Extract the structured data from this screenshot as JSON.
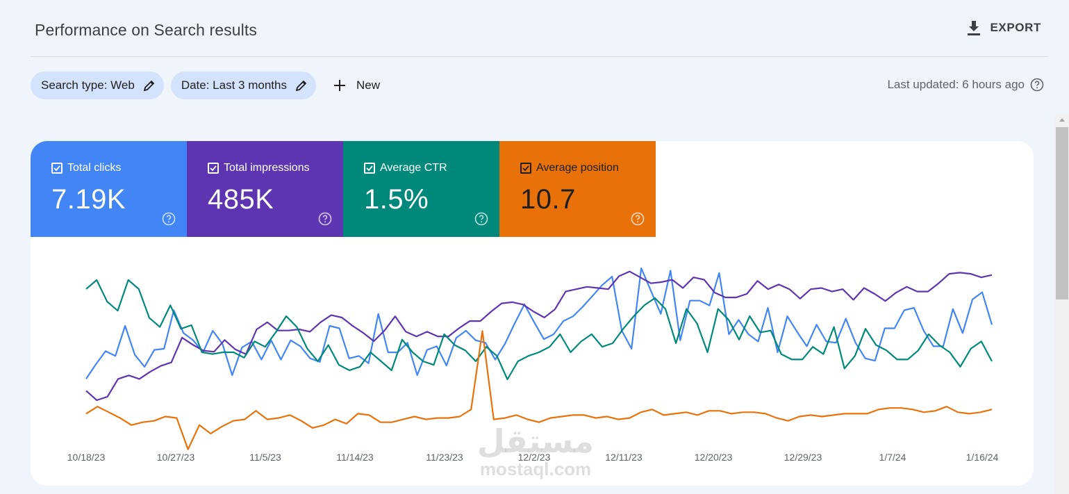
{
  "header": {
    "title": "Performance on Search results",
    "export_label": "EXPORT"
  },
  "filters": {
    "search_type": "Search type: Web",
    "date": "Date: Last 3 months",
    "new_label": "New"
  },
  "last_updated": "Last updated: 6 hours ago",
  "metrics": [
    {
      "label": "Total clicks",
      "value": "7.19K",
      "color": "#4285f4"
    },
    {
      "label": "Total impressions",
      "value": "485K",
      "color": "#5e35b1"
    },
    {
      "label": "Average CTR",
      "value": "1.5%",
      "color": "#00897b"
    },
    {
      "label": "Average position",
      "value": "10.7",
      "color": "#e8710a"
    }
  ],
  "chart_data": {
    "type": "line",
    "x_tick_labels": [
      "10/18/23",
      "10/27/23",
      "11/5/23",
      "11/14/23",
      "11/23/23",
      "12/2/23",
      "12/11/23",
      "12/20/23",
      "12/29/23",
      "1/7/24",
      "1/16/24"
    ],
    "series": [
      {
        "name": "Total clicks",
        "color": "#4285f4",
        "values": [
          0.08,
          0.2,
          0.31,
          0.27,
          0.52,
          0.28,
          0.18,
          0.32,
          0.33,
          0.65,
          0.46,
          0.4,
          0.3,
          0.48,
          0.37,
          0.11,
          0.34,
          0.39,
          0.24,
          0.4,
          0.24,
          0.4,
          0.35,
          0.25,
          0.22,
          0.52,
          0.5,
          0.25,
          0.27,
          0.21,
          0.62,
          0.3,
          0.3,
          0.38,
          0.11,
          0.32,
          0.35,
          0.19,
          0.42,
          0.48,
          0.4,
          0.38,
          0.24,
          0.37,
          0.54,
          0.7,
          0.55,
          0.41,
          0.45,
          0.56,
          0.6,
          0.68,
          0.77,
          0.86,
          0.93,
          0.48,
          0.33,
          1.0,
          0.81,
          0.62,
          0.98,
          0.4,
          0.73,
          0.73,
          0.69,
          0.96,
          0.45,
          0.57,
          0.45,
          0.39,
          0.67,
          0.3,
          0.6,
          0.47,
          0.35,
          0.53,
          0.39,
          0.38,
          0.58,
          0.38,
          0.25,
          0.23,
          0.5,
          0.5,
          0.65,
          0.67,
          0.48,
          0.35,
          0.35,
          0.66,
          0.46,
          0.74,
          0.8,
          0.53
        ]
      },
      {
        "name": "Total impressions",
        "color": "#5e35b1",
        "values": [
          0.18,
          0.1,
          0.13,
          0.28,
          0.31,
          0.28,
          0.34,
          0.39,
          0.42,
          0.63,
          0.57,
          0.52,
          0.51,
          0.61,
          0.53,
          0.49,
          0.7,
          0.76,
          0.69,
          0.69,
          0.7,
          0.68,
          0.76,
          0.82,
          0.8,
          0.73,
          0.67,
          0.6,
          0.69,
          0.81,
          0.68,
          0.64,
          0.68,
          0.64,
          0.64,
          0.71,
          0.77,
          0.77,
          0.85,
          0.92,
          0.93,
          0.91,
          0.85,
          0.8,
          0.87,
          1.02,
          1.04,
          1.06,
          1.05,
          1.04,
          1.15,
          1.19,
          1.14,
          1.09,
          1.1,
          1.12,
          1.05,
          1.14,
          1.12,
          1.01,
          0.97,
          0.97,
          1.0,
          1.11,
          1.04,
          1.08,
          1.04,
          0.96,
          1.04,
          1.05,
          1.02,
          1.04,
          0.95,
          1.05,
          1.0,
          0.94,
          1.01,
          1.06,
          1.02,
          1.02,
          1.09,
          1.17,
          1.18,
          1.17,
          1.14,
          1.16
        ]
      },
      {
        "name": "Average CTR",
        "color": "#00897b",
        "values": [
          0.95,
          1.0,
          0.88,
          0.83,
          1.0,
          0.95,
          0.79,
          0.74,
          0.86,
          0.73,
          0.75,
          0.6,
          0.59,
          0.6,
          0.6,
          0.57,
          0.66,
          0.63,
          0.71,
          0.8,
          0.74,
          0.62,
          0.55,
          0.64,
          0.53,
          0.5,
          0.52,
          0.6,
          0.55,
          0.5,
          0.67,
          0.6,
          0.55,
          0.53,
          0.7,
          0.64,
          0.61,
          0.55,
          0.63,
          0.58,
          0.45,
          0.55,
          0.58,
          0.6,
          0.63,
          0.7,
          0.6,
          0.66,
          0.7,
          0.63,
          0.65,
          0.73,
          0.8,
          0.86,
          0.9,
          0.84,
          0.65,
          0.84,
          0.76,
          0.6,
          0.84,
          0.78,
          0.67,
          0.8,
          0.71,
          0.72,
          0.59,
          0.56,
          0.56,
          0.63,
          0.59,
          0.74,
          0.51,
          0.58,
          0.73,
          0.64,
          0.61,
          0.56,
          0.56,
          0.61,
          0.7,
          0.64,
          0.6,
          0.52,
          0.62,
          0.66,
          0.55
        ]
      },
      {
        "name": "Average position",
        "color": "#e8710a",
        "values": [
          13.2,
          13.7,
          13.3,
          12.9,
          12.4,
          12.6,
          12.7,
          13.0,
          12.9,
          10.7,
          12.4,
          11.8,
          12.3,
          12.7,
          12.8,
          13.4,
          12.8,
          12.9,
          13.1,
          12.7,
          12.2,
          12.4,
          12.8,
          12.5,
          13.2,
          13.1,
          12.6,
          12.6,
          12.8,
          13.0,
          12.8,
          12.9,
          12.9,
          13.0,
          13.5,
          19.0,
          12.8,
          12.9,
          13.1,
          12.8,
          12.6,
          12.9,
          13.0,
          13.1,
          13.1,
          12.9,
          13.0,
          12.8,
          12.9,
          13.3,
          13.5,
          13.1,
          13.2,
          13.3,
          13.1,
          13.4,
          13.4,
          13.2,
          13.3,
          13.3,
          13.2,
          12.9,
          12.7,
          13.0,
          13.1,
          13.0,
          13.1,
          13.2,
          13.2,
          13.2,
          13.5,
          13.6,
          13.6,
          13.5,
          13.3,
          13.4,
          13.7,
          13.3,
          13.2,
          13.3,
          13.5
        ]
      }
    ],
    "grid": false,
    "legend": "none"
  },
  "watermark": {
    "arabic": "مستقل",
    "latin": "mostaql.com"
  }
}
